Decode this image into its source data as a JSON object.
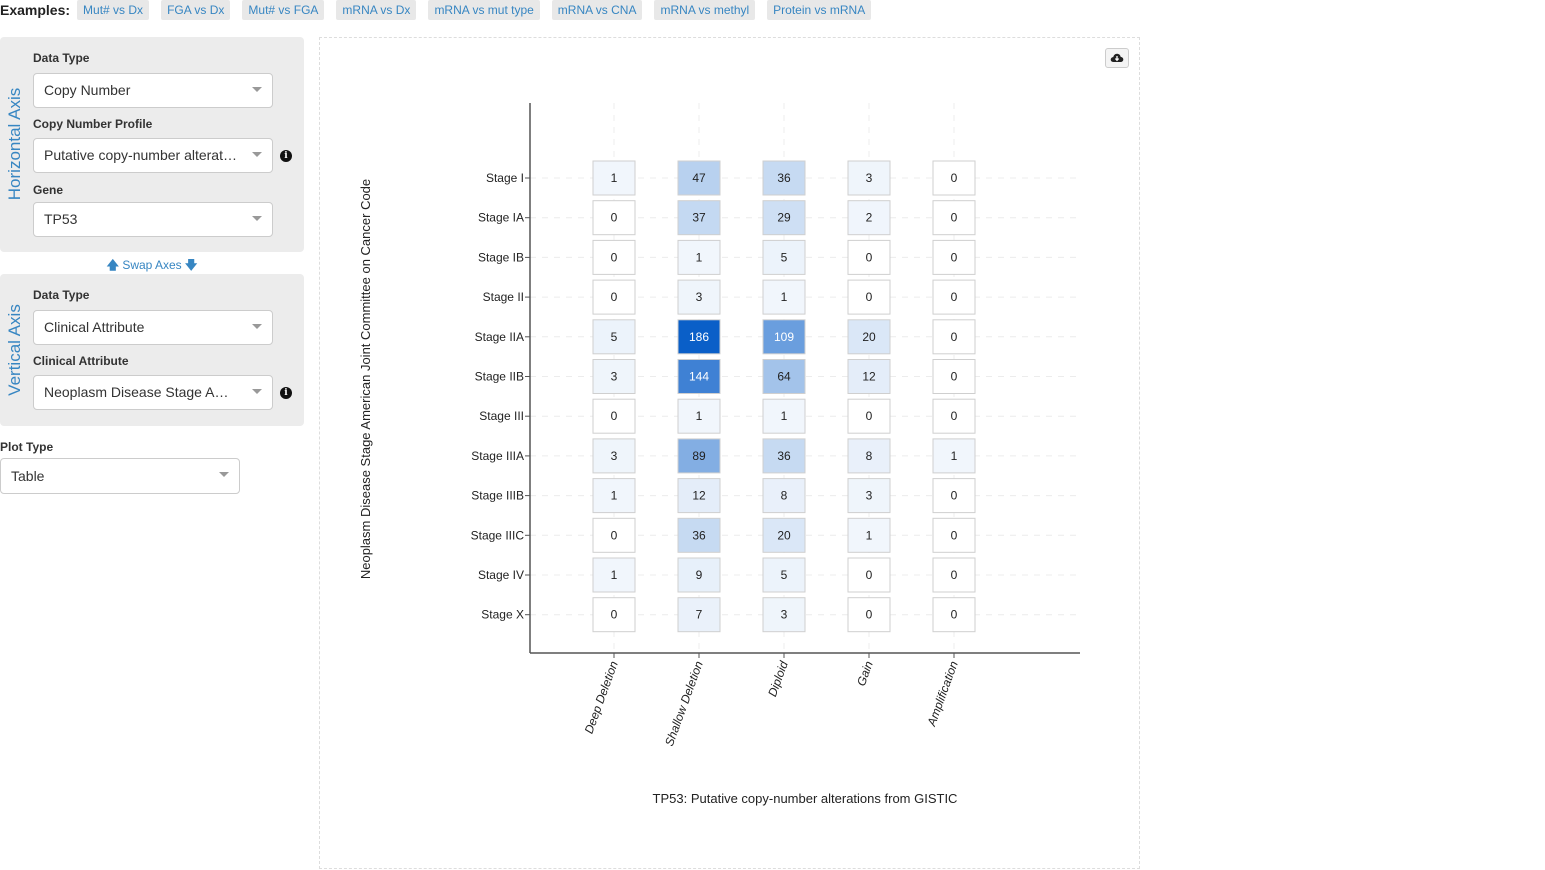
{
  "examples": {
    "label": "Examples:",
    "items": [
      "Mut# vs Dx",
      "FGA vs Dx",
      "Mut# vs FGA",
      "mRNA vs Dx",
      "mRNA vs mut type",
      "mRNA vs CNA",
      "mRNA vs methyl",
      "Protein vs mRNA"
    ]
  },
  "horizontal": {
    "title": "Horizontal Axis",
    "data_type_label": "Data Type",
    "data_type_value": "Copy Number",
    "profile_label": "Copy Number Profile",
    "profile_value": "Putative copy-number alterations from GISTIC",
    "gene_label": "Gene",
    "gene_value": "TP53"
  },
  "swap_label": "Swap Axes",
  "vertical": {
    "title": "Vertical Axis",
    "data_type_label": "Data Type",
    "data_type_value": "Clinical Attribute",
    "attribute_label": "Clinical Attribute",
    "attribute_value": "Neoplasm Disease Stage American Joint Committee on Cancer Code"
  },
  "plot_type": {
    "label": "Plot Type",
    "value": "Table"
  },
  "icons": {
    "swap_up": "arrow-up-icon",
    "swap_down": "arrow-down-icon",
    "info": "info-icon",
    "download": "cloud-download-icon"
  },
  "colors": {
    "accent": "#3786c2",
    "cell_max": "#0a5fc8"
  },
  "chart_data": {
    "type": "heatmap",
    "xlabel": "TP53: Putative copy-number alterations from GISTIC",
    "ylabel": "Neoplasm Disease Stage American Joint Committee on Cancer Code",
    "x_categories": [
      "Deep Deletion",
      "Shallow Deletion",
      "Diploid",
      "Gain",
      "Amplification"
    ],
    "y_categories": [
      "Stage I",
      "Stage IA",
      "Stage IB",
      "Stage II",
      "Stage IIA",
      "Stage IIB",
      "Stage III",
      "Stage IIIA",
      "Stage IIIB",
      "Stage IIIC",
      "Stage IV",
      "Stage X"
    ],
    "values": [
      [
        1,
        47,
        36,
        3,
        0
      ],
      [
        0,
        37,
        29,
        2,
        0
      ],
      [
        0,
        1,
        5,
        0,
        0
      ],
      [
        0,
        3,
        1,
        0,
        0
      ],
      [
        5,
        186,
        109,
        20,
        0
      ],
      [
        3,
        144,
        64,
        12,
        0
      ],
      [
        0,
        1,
        1,
        0,
        0
      ],
      [
        3,
        89,
        36,
        8,
        1
      ],
      [
        1,
        12,
        8,
        3,
        0
      ],
      [
        0,
        36,
        20,
        1,
        0
      ],
      [
        1,
        9,
        5,
        0,
        0
      ],
      [
        0,
        7,
        3,
        0,
        0
      ]
    ],
    "grid": true
  }
}
